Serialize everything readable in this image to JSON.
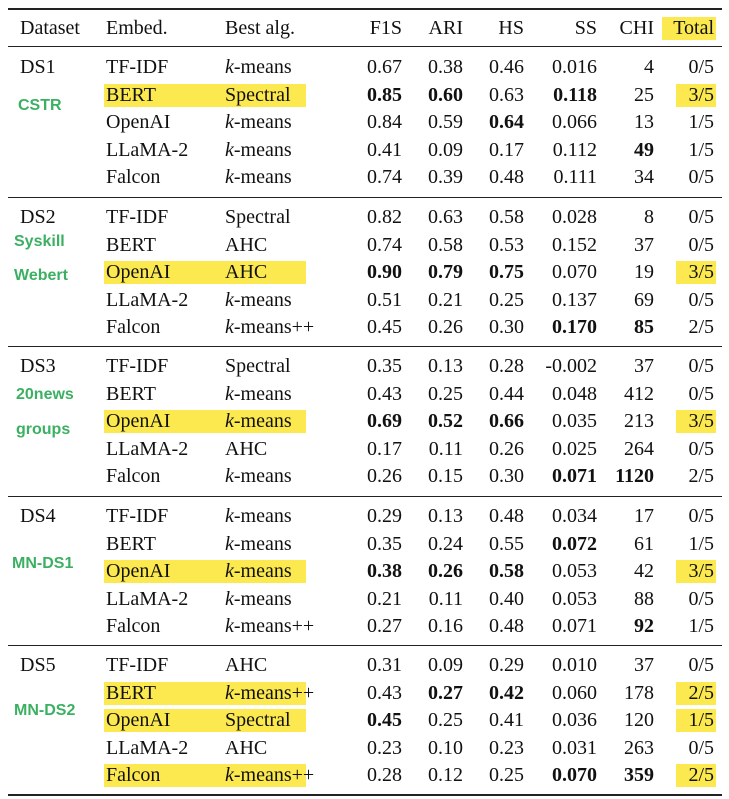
{
  "table": {
    "header": [
      "Dataset",
      "Embed.",
      "Best alg.",
      "F1S",
      "ARI",
      "HS",
      "SS",
      "CHI",
      "Total"
    ],
    "header_highlight": [
      8
    ],
    "groups": [
      {
        "dataset": "DS1",
        "note": [
          "CSTR"
        ],
        "rows": [
          {
            "cells": [
              "TF-IDF",
              "k-means",
              "0.67",
              "0.38",
              "0.46",
              "0.016",
              "4",
              "0/5"
            ]
          },
          {
            "cells": [
              "BERT",
              "Spectral",
              "0.85",
              "0.60",
              "0.63",
              "0.118",
              "25",
              "3/5"
            ],
            "bold": [
              2,
              3,
              5
            ],
            "highlight": [
              0,
              1,
              7
            ]
          },
          {
            "cells": [
              "OpenAI",
              "k-means",
              "0.84",
              "0.59",
              "0.64",
              "0.066",
              "13",
              "1/5"
            ],
            "bold": [
              4
            ]
          },
          {
            "cells": [
              "LLaMA-2",
              "k-means",
              "0.41",
              "0.09",
              "0.17",
              "0.112",
              "49",
              "1/5"
            ],
            "bold": [
              6
            ]
          },
          {
            "cells": [
              "Falcon",
              "k-means",
              "0.74",
              "0.39",
              "0.48",
              "0.111",
              "34",
              "0/5"
            ]
          }
        ]
      },
      {
        "dataset": "DS2",
        "note": [
          "Syskill",
          "Webert"
        ],
        "rows": [
          {
            "cells": [
              "TF-IDF",
              "Spectral",
              "0.82",
              "0.63",
              "0.58",
              "0.028",
              "8",
              "0/5"
            ]
          },
          {
            "cells": [
              "BERT",
              "AHC",
              "0.74",
              "0.58",
              "0.53",
              "0.152",
              "37",
              "0/5"
            ]
          },
          {
            "cells": [
              "OpenAI",
              "AHC",
              "0.90",
              "0.79",
              "0.75",
              "0.070",
              "19",
              "3/5"
            ],
            "bold": [
              2,
              3,
              4
            ],
            "highlight": [
              0,
              1,
              7
            ]
          },
          {
            "cells": [
              "LLaMA-2",
              "k-means",
              "0.51",
              "0.21",
              "0.25",
              "0.137",
              "69",
              "0/5"
            ]
          },
          {
            "cells": [
              "Falcon",
              "k-means++",
              "0.45",
              "0.26",
              "0.30",
              "0.170",
              "85",
              "2/5"
            ],
            "bold": [
              5,
              6
            ]
          }
        ]
      },
      {
        "dataset": "DS3",
        "note": [
          "20news",
          "groups"
        ],
        "rows": [
          {
            "cells": [
              "TF-IDF",
              "Spectral",
              "0.35",
              "0.13",
              "0.28",
              "-0.002",
              "37",
              "0/5"
            ]
          },
          {
            "cells": [
              "BERT",
              "k-means",
              "0.43",
              "0.25",
              "0.44",
              "0.048",
              "412",
              "0/5"
            ]
          },
          {
            "cells": [
              "OpenAI",
              "k-means",
              "0.69",
              "0.52",
              "0.66",
              "0.035",
              "213",
              "3/5"
            ],
            "bold": [
              2,
              3,
              4
            ],
            "highlight": [
              0,
              1,
              7
            ]
          },
          {
            "cells": [
              "LLaMA-2",
              "AHC",
              "0.17",
              "0.11",
              "0.26",
              "0.025",
              "264",
              "0/5"
            ]
          },
          {
            "cells": [
              "Falcon",
              "k-means",
              "0.26",
              "0.15",
              "0.30",
              "0.071",
              "1120",
              "2/5"
            ],
            "bold": [
              5,
              6
            ]
          }
        ]
      },
      {
        "dataset": "DS4",
        "note": [
          "MN-DS1"
        ],
        "rows": [
          {
            "cells": [
              "TF-IDF",
              "k-means",
              "0.29",
              "0.13",
              "0.48",
              "0.034",
              "17",
              "0/5"
            ]
          },
          {
            "cells": [
              "BERT",
              "k-means",
              "0.35",
              "0.24",
              "0.55",
              "0.072",
              "61",
              "1/5"
            ],
            "bold": [
              5
            ]
          },
          {
            "cells": [
              "OpenAI",
              "k-means",
              "0.38",
              "0.26",
              "0.58",
              "0.053",
              "42",
              "3/5"
            ],
            "bold": [
              2,
              3,
              4
            ],
            "highlight": [
              0,
              1,
              7
            ]
          },
          {
            "cells": [
              "LLaMA-2",
              "k-means",
              "0.21",
              "0.11",
              "0.40",
              "0.053",
              "88",
              "0/5"
            ]
          },
          {
            "cells": [
              "Falcon",
              "k-means++",
              "0.27",
              "0.16",
              "0.48",
              "0.071",
              "92",
              "1/5"
            ],
            "bold": [
              6
            ]
          }
        ]
      },
      {
        "dataset": "DS5",
        "note": [
          "MN-DS2"
        ],
        "rows": [
          {
            "cells": [
              "TF-IDF",
              "AHC",
              "0.31",
              "0.09",
              "0.29",
              "0.010",
              "37",
              "0/5"
            ]
          },
          {
            "cells": [
              "BERT",
              "k-means++",
              "0.43",
              "0.27",
              "0.42",
              "0.060",
              "178",
              "2/5"
            ],
            "bold": [
              3,
              4
            ],
            "highlight": [
              0,
              1,
              7
            ]
          },
          {
            "cells": [
              "OpenAI",
              "Spectral",
              "0.45",
              "0.25",
              "0.41",
              "0.036",
              "120",
              "1/5"
            ],
            "bold": [
              2
            ],
            "highlight": [
              0,
              1,
              7
            ]
          },
          {
            "cells": [
              "LLaMA-2",
              "AHC",
              "0.23",
              "0.10",
              "0.23",
              "0.031",
              "263",
              "0/5"
            ]
          },
          {
            "cells": [
              "Falcon",
              "k-means++",
              "0.28",
              "0.12",
              "0.25",
              "0.070",
              "359",
              "2/5"
            ],
            "bold": [
              5,
              6
            ],
            "highlight": [
              0,
              1,
              7
            ]
          }
        ]
      }
    ]
  }
}
